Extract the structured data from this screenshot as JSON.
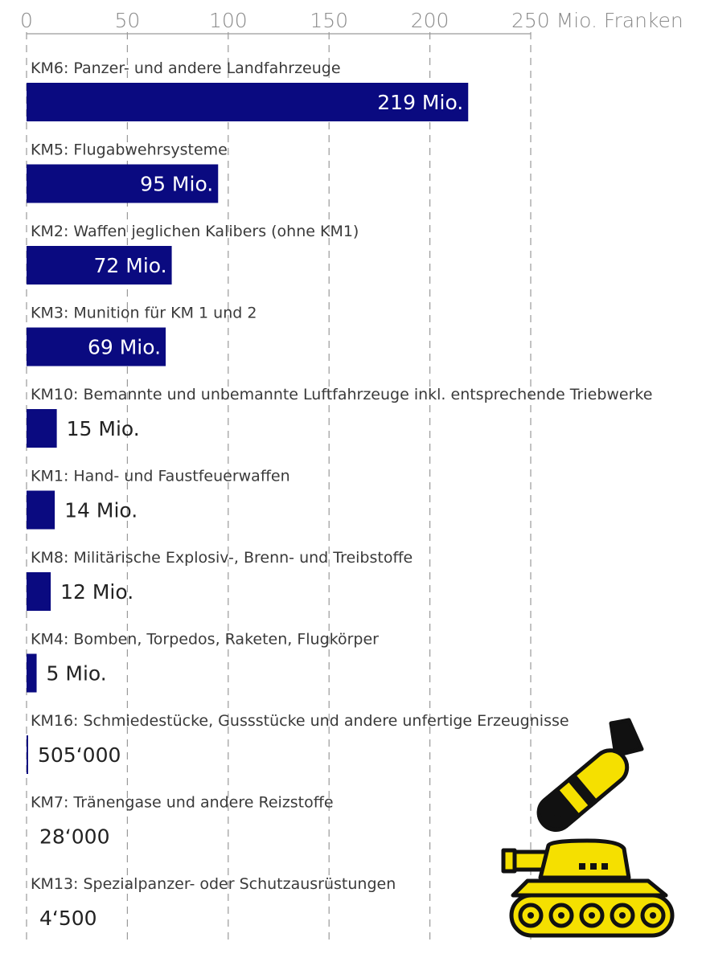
{
  "chart_data": {
    "type": "bar",
    "orientation": "horizontal",
    "unit_label": "Mio. Franken",
    "xlim": [
      0,
      250
    ],
    "ticks": [
      0,
      50,
      100,
      150,
      200,
      250
    ],
    "tick_labels": [
      "0",
      "50",
      "100",
      "150",
      "200",
      "250 Mio. Franken"
    ],
    "grid": true,
    "bar_color": "#0a0a80",
    "categories": [
      "KM6: Panzer- und andere Landfahrzeuge",
      "KM5: Flugabwehrsysteme",
      "KM2: Waffen jeglichen Kalibers (ohne KM1)",
      "KM3: Munition für KM 1 und 2",
      "KM10: Bemannte und unbemannte Luftfahrzeuge inkl. entsprechende Triebwerke",
      "KM1: Hand- und Faustfeuerwaffen",
      "KM8: Militärische Explosiv-, Brenn- und Treibstoffe",
      "KM4: Bomben, Torpedos, Raketen, Flugkörper",
      "KM16: Schmiedestücke, Gussstücke und andere unfertige Erzeugnisse",
      "KM7: Tränengase und andere Reizstoffe",
      "KM13: Spezialpanzer- oder Schutzausrüstungen"
    ],
    "values": [
      219,
      95,
      72,
      69,
      15,
      14,
      12,
      5,
      0.505,
      0.028,
      0.0045
    ],
    "value_labels": [
      "219 Mio.",
      "95 Mio.",
      "72 Mio.",
      "69 Mio.",
      "15 Mio.",
      "14 Mio.",
      "12 Mio.",
      "5 Mio.",
      "505‘000",
      "28‘000",
      "4‘500"
    ]
  },
  "illustration": {
    "icons": [
      "bomb-icon",
      "tank-icon"
    ],
    "fill_color": "#f5e000",
    "outline_color": "#111111"
  }
}
